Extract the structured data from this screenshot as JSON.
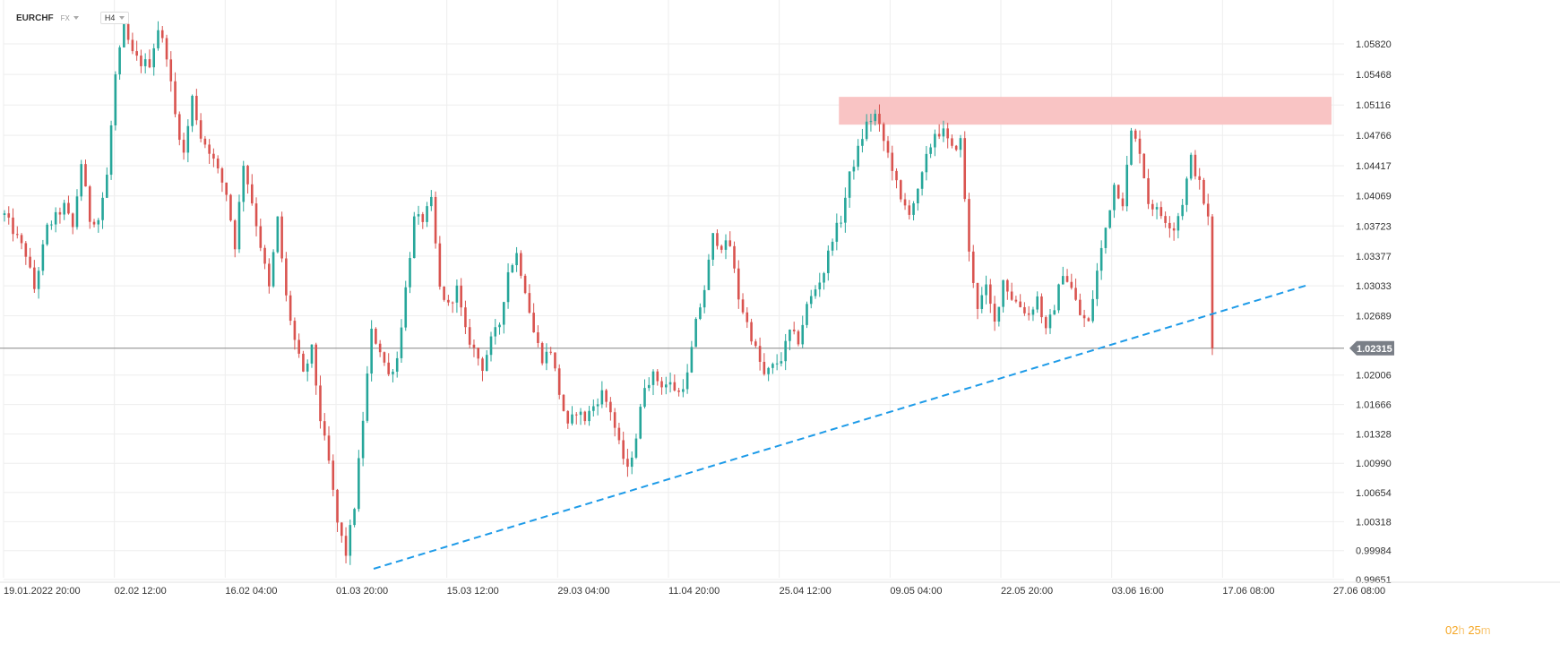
{
  "header": {
    "symbol": "EURCHF",
    "market": "FX",
    "timeframe": "H4"
  },
  "timer": {
    "hours": "02",
    "hours_unit": "h",
    "minutes": "25",
    "minutes_unit": "m"
  },
  "colors": {
    "up": "#26a69a",
    "down": "#d9534f",
    "grid": "#eeeeee",
    "trendline": "#1e9be8",
    "zone": "#f9c4c4",
    "current_price_line": "#888888",
    "current_price_label_bg": "#7a7f87"
  },
  "chart_data": {
    "type": "candlestick",
    "symbol": "EURCHF",
    "timeframe": "H4",
    "y_ticks": [
      "1.05820",
      "1.05468",
      "1.05116",
      "1.04766",
      "1.04417",
      "1.04069",
      "1.03723",
      "1.03377",
      "1.03033",
      "1.02689",
      "1.02315",
      "1.02006",
      "1.01666",
      "1.01328",
      "1.00990",
      "1.00654",
      "1.00318",
      "0.99984",
      "0.99651"
    ],
    "ylim": [
      0.9959,
      1.0618
    ],
    "current_price": "1.02315",
    "x_ticks": [
      "19.01.2022  20:00",
      "02.02  12:00",
      "16.02  04:00",
      "01.03  20:00",
      "15.03  12:00",
      "29.03  04:00",
      "11.04  20:00",
      "25.04  12:00",
      "09.05  04:00",
      "22.05  20:00",
      "03.06  16:00",
      "17.06  08:00",
      "27.06  08:00"
    ],
    "price_path": [
      [
        0,
        1.0385
      ],
      [
        5,
        1.034
      ],
      [
        7,
        1.03
      ],
      [
        10,
        1.037
      ],
      [
        14,
        1.0395
      ],
      [
        16,
        1.037
      ],
      [
        18,
        1.0445
      ],
      [
        20,
        1.038
      ],
      [
        22,
        1.038
      ],
      [
        24,
        1.043
      ],
      [
        26,
        1.0545
      ],
      [
        28,
        1.06
      ],
      [
        30,
        1.057
      ],
      [
        32,
        1.056
      ],
      [
        34,
        1.056
      ],
      [
        36,
        1.06
      ],
      [
        38,
        1.057
      ],
      [
        40,
        1.05
      ],
      [
        42,
        1.0455
      ],
      [
        44,
        1.052
      ],
      [
        46,
        1.0475
      ],
      [
        48,
        1.046
      ],
      [
        52,
        1.041
      ],
      [
        54,
        1.035
      ],
      [
        56,
        1.0445
      ],
      [
        58,
        1.04
      ],
      [
        60,
        1.035
      ],
      [
        62,
        1.03
      ],
      [
        64,
        1.038
      ],
      [
        66,
        1.029
      ],
      [
        68,
        1.024
      ],
      [
        70,
        1.02
      ],
      [
        72,
        1.023
      ],
      [
        74,
        1.015
      ],
      [
        76,
        1.01
      ],
      [
        78,
        1.003
      ],
      [
        80,
        0.9995
      ],
      [
        82,
        1.005
      ],
      [
        84,
        1.015
      ],
      [
        86,
        1.025
      ],
      [
        88,
        1.023
      ],
      [
        90,
        1.02
      ],
      [
        92,
        1.022
      ],
      [
        94,
        1.03
      ],
      [
        96,
        1.038
      ],
      [
        98,
        1.038
      ],
      [
        100,
        1.04
      ],
      [
        102,
        1.03
      ],
      [
        104,
        1.028
      ],
      [
        106,
        1.03
      ],
      [
        108,
        1.025
      ],
      [
        110,
        1.023
      ],
      [
        112,
        1.021
      ],
      [
        114,
        1.024
      ],
      [
        116,
        1.026
      ],
      [
        118,
        1.032
      ],
      [
        120,
        1.034
      ],
      [
        122,
        1.03
      ],
      [
        124,
        1.025
      ],
      [
        126,
        1.022
      ],
      [
        128,
        1.023
      ],
      [
        130,
        1.018
      ],
      [
        132,
        1.014
      ],
      [
        134,
        1.016
      ],
      [
        136,
        1.015
      ],
      [
        138,
        1.0165
      ],
      [
        140,
        1.018
      ],
      [
        142,
        1.016
      ],
      [
        144,
        1.012
      ],
      [
        146,
        1.009
      ],
      [
        148,
        1.013
      ],
      [
        150,
        1.019
      ],
      [
        152,
        1.02
      ],
      [
        154,
        1.019
      ],
      [
        156,
        1.019
      ],
      [
        158,
        1.018
      ],
      [
        160,
        1.02
      ],
      [
        162,
        1.026
      ],
      [
        164,
        1.03
      ],
      [
        166,
        1.036
      ],
      [
        168,
        1.035
      ],
      [
        170,
        1.035
      ],
      [
        172,
        1.029
      ],
      [
        174,
        1.026
      ],
      [
        176,
        1.023
      ],
      [
        178,
        1.02
      ],
      [
        180,
        1.021
      ],
      [
        182,
        1.022
      ],
      [
        184,
        1.025
      ],
      [
        186,
        1.024
      ],
      [
        188,
        1.028
      ],
      [
        190,
        1.03
      ],
      [
        192,
        1.032
      ],
      [
        194,
        1.036
      ],
      [
        196,
        1.038
      ],
      [
        198,
        1.043
      ],
      [
        200,
        1.046
      ],
      [
        202,
        1.049
      ],
      [
        204,
        1.05
      ],
      [
        206,
        1.047
      ],
      [
        208,
        1.044
      ],
      [
        210,
        1.04
      ],
      [
        212,
        1.039
      ],
      [
        214,
        1.041
      ],
      [
        216,
        1.045
      ],
      [
        218,
        1.048
      ],
      [
        220,
        1.048
      ],
      [
        222,
        1.046
      ],
      [
        224,
        1.047
      ],
      [
        226,
        1.034
      ],
      [
        228,
        1.028
      ],
      [
        230,
        1.03
      ],
      [
        232,
        1.026
      ],
      [
        234,
        1.031
      ],
      [
        236,
        1.029
      ],
      [
        238,
        1.028
      ],
      [
        240,
        1.027
      ],
      [
        242,
        1.029
      ],
      [
        244,
        1.025
      ],
      [
        246,
        1.028
      ],
      [
        248,
        1.032
      ],
      [
        250,
        1.03
      ],
      [
        252,
        1.027
      ],
      [
        254,
        1.026
      ],
      [
        256,
        1.032
      ],
      [
        258,
        1.037
      ],
      [
        260,
        1.042
      ],
      [
        262,
        1.04
      ],
      [
        264,
        1.048
      ],
      [
        266,
        1.046
      ],
      [
        268,
        1.04
      ],
      [
        270,
        1.039
      ],
      [
        272,
        1.038
      ],
      [
        274,
        1.037
      ],
      [
        276,
        1.04
      ],
      [
        278,
        1.045
      ],
      [
        280,
        1.042
      ],
      [
        282,
        1.038
      ],
      [
        283,
        1.0231
      ]
    ],
    "resistance_zone": {
      "y_low": 1.0489,
      "y_high": 1.0521
    },
    "trendline": {
      "from": [
        1.0,
        0.9975
      ],
      "to": [
        1.0,
        1.0305
      ]
    }
  }
}
